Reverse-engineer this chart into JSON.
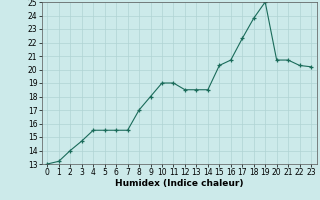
{
  "x": [
    0,
    1,
    2,
    3,
    4,
    5,
    6,
    7,
    8,
    9,
    10,
    11,
    12,
    13,
    14,
    15,
    16,
    17,
    18,
    19,
    20,
    21,
    22,
    23
  ],
  "y": [
    13,
    13.2,
    14,
    14.7,
    15.5,
    15.5,
    15.5,
    15.5,
    17,
    18,
    19,
    19,
    18.5,
    18.5,
    18.5,
    20.3,
    20.7,
    22.3,
    23.8,
    25,
    20.7,
    20.7,
    20.3,
    20.2
  ],
  "xlabel": "Humidex (Indice chaleur)",
  "xlim": [
    -0.5,
    23.5
  ],
  "ylim": [
    13,
    25
  ],
  "yticks": [
    13,
    14,
    15,
    16,
    17,
    18,
    19,
    20,
    21,
    22,
    23,
    24,
    25
  ],
  "xticks": [
    0,
    1,
    2,
    3,
    4,
    5,
    6,
    7,
    8,
    9,
    10,
    11,
    12,
    13,
    14,
    15,
    16,
    17,
    18,
    19,
    20,
    21,
    22,
    23
  ],
  "line_color": "#1a6b5a",
  "marker": "+",
  "bg_color": "#cceaea",
  "grid_color": "#b0d4d4",
  "label_fontsize": 6.5,
  "tick_fontsize": 5.5
}
